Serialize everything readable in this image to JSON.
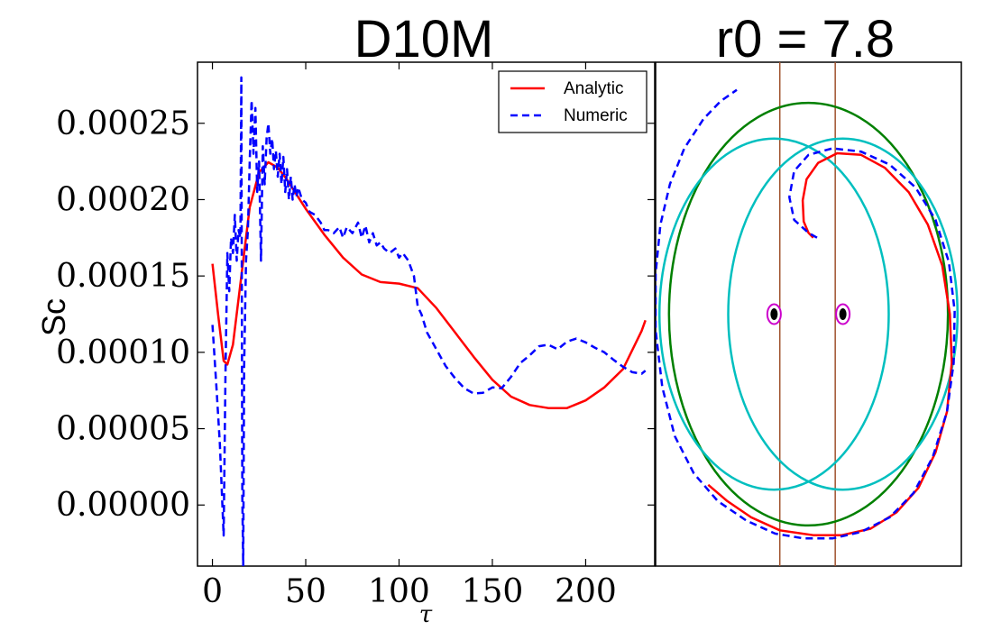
{
  "chart_data": [
    {
      "type": "line",
      "title": "D10M",
      "xlabel": "τ",
      "ylabel": "Sc",
      "xlim": [
        -8,
        237
      ],
      "ylim": [
        -4e-05,
        0.00029
      ],
      "grid": false,
      "legend_position": "top-right",
      "x_ticks": [
        0,
        50,
        100,
        150,
        200
      ],
      "x_tick_labels": [
        "0",
        "50",
        "100",
        "150",
        "200"
      ],
      "y_ticks": [
        0,
        5e-05,
        0.0001,
        0.00015,
        0.0002,
        0.00025
      ],
      "y_tick_labels": [
        "0.00000",
        "0.00005",
        "0.00010",
        "0.00015",
        "0.00020",
        "0.00025"
      ],
      "series": [
        {
          "name": "Analytic",
          "color": "#ff0000",
          "style": "solid",
          "x": [
            0,
            3,
            6,
            8,
            11,
            15,
            20,
            25,
            30,
            35,
            40,
            50,
            60,
            70,
            80,
            90,
            100,
            110,
            120,
            130,
            140,
            150,
            160,
            170,
            180,
            190,
            200,
            210,
            220,
            230,
            232
          ],
          "y": [
            0.000158,
            0.000125,
            9.45e-05,
            9.2e-05,
            0.000105,
            0.000145,
            0.000195,
            0.000218,
            0.0002245,
            0.000221,
            0.000213,
            0.000194,
            0.000177,
            0.000162,
            0.000151,
            0.000146,
            0.000145,
            0.000142,
            0.000129,
            0.000113,
            9.7e-05,
            8.2e-05,
            7.1e-05,
            6.55e-05,
            6.35e-05,
            6.35e-05,
            6.85e-05,
            7.7e-05,
            8.9e-05,
            0.000114,
            0.000121
          ]
        },
        {
          "name": "Numeric",
          "color": "#0000ff",
          "style": "dashed",
          "x": [
            0,
            2,
            4,
            6,
            7,
            8,
            9,
            10,
            11,
            12,
            13,
            14,
            15,
            15.5,
            16,
            16.5,
            17,
            18,
            19,
            20,
            21,
            22,
            23,
            24,
            25,
            26,
            27,
            28,
            29,
            30,
            31,
            32,
            33,
            34,
            35,
            36,
            37,
            38,
            39,
            40,
            41,
            42,
            43,
            44,
            45,
            46,
            48,
            50,
            52,
            55,
            58,
            60,
            62,
            65,
            68,
            70,
            72,
            75,
            78,
            80,
            82,
            84,
            86,
            88,
            90,
            92,
            95,
            98,
            100,
            102,
            105,
            108,
            110,
            112,
            115,
            120,
            125,
            130,
            135,
            140,
            145,
            150,
            155,
            160,
            165,
            170,
            175,
            180,
            185,
            190,
            195,
            200,
            205,
            210,
            215,
            220,
            225,
            230,
            232
          ],
          "y": [
            0.000118,
            8e-05,
            4e-05,
            -2e-05,
            8.5e-05,
            0.000165,
            0.00014,
            0.000175,
            0.000165,
            0.00019,
            0.00016,
            0.00018,
            0.000175,
            0.00028,
            5e-06,
            -4e-05,
            9e-05,
            0.00016,
            0.00018,
            0.000225,
            0.000265,
            0.00023,
            0.00026,
            0.000205,
            0.000225,
            0.00016,
            0.000235,
            0.00021,
            0.00024,
            0.00025,
            0.00023,
            0.00024,
            0.00022,
            0.000232,
            0.000215,
            0.00023,
            0.00021,
            0.000228,
            0.000205,
            0.00022,
            0.0002,
            0.000215,
            0.0002,
            0.00021,
            0.000202,
            0.000208,
            0.0002,
            0.000198,
            0.000192,
            0.00019,
            0.000185,
            0.00018,
            0.00018,
            0.000178,
            0.000182,
            0.000175,
            0.000182,
            0.000178,
            0.000185,
            0.000175,
            0.000183,
            0.000172,
            0.000178,
            0.00017,
            0.000172,
            0.000168,
            0.000165,
            0.000168,
            0.000162,
            0.000165,
            0.00016,
            0.00015,
            0.00013,
            0.000125,
            0.000113,
            0.000102,
            9.1e-05,
            8.3e-05,
            7.65e-05,
            7.3e-05,
            7.35e-05,
            7.7e-05,
            7.65e-05,
            8.4e-05,
            9.3e-05,
            9.8e-05,
            0.000104,
            0.000105,
            0.000102,
            0.000107,
            0.000109,
            0.0001065,
            0.000103,
            0.0001,
            9.5e-05,
            9.05e-05,
            8.7e-05,
            8.6e-05,
            8.8e-05
          ]
        }
      ]
    },
    {
      "type": "line",
      "title": "r0 = 7.8",
      "xlim": [
        -1.6,
        1.6
      ],
      "ylim": [
        -1.55,
        1.55
      ],
      "axes_visible": false,
      "grid": false,
      "bodies": [
        {
          "x": -0.36,
          "y": 0
        },
        {
          "x": 0.36,
          "y": 0
        }
      ],
      "body_colors": {
        "fill": "#000000",
        "ring": "#cc00cc"
      },
      "vertical_lines": {
        "x": [
          -0.3,
          0.28
        ],
        "color": "#a0522d"
      },
      "curves": [
        {
          "name": "green orbit",
          "color": "#008000",
          "style": "solid",
          "shape": "ellipse",
          "cx": 0,
          "cy": 0,
          "rx": 1.46,
          "ry": 1.3
        },
        {
          "name": "cyan orbit left",
          "color": "#00bfbf",
          "style": "solid",
          "shape": "ellipse",
          "cx": -0.36,
          "cy": 0,
          "rx": 1.2,
          "ry": 1.08
        },
        {
          "name": "cyan orbit right",
          "color": "#00bfbf",
          "style": "solid",
          "shape": "ellipse",
          "cx": 0.36,
          "cy": 0,
          "rx": 1.2,
          "ry": 1.08
        },
        {
          "name": "red spiral",
          "color": "#ff0000",
          "style": "solid",
          "shape": "polyline",
          "x": [
            0.05,
            0.0,
            -0.05,
            -0.06,
            -0.02,
            0.1,
            0.3,
            0.55,
            0.8,
            1.05,
            1.25,
            1.4,
            1.48,
            1.5,
            1.45,
            1.33,
            1.15,
            0.92,
            0.65,
            0.35,
            0.05,
            -0.3,
            -0.6,
            -0.85,
            -1.05
          ],
          "y": [
            0.47,
            0.5,
            0.57,
            0.7,
            0.83,
            0.93,
            0.99,
            0.98,
            0.9,
            0.75,
            0.55,
            0.3,
            0.0,
            -0.3,
            -0.6,
            -0.85,
            -1.07,
            -1.22,
            -1.32,
            -1.36,
            -1.36,
            -1.33,
            -1.25,
            -1.15,
            -1.05
          ]
        },
        {
          "name": "blue dashed spiral",
          "color": "#0000ff",
          "style": "dashed",
          "shape": "polyline",
          "x": [
            0.09,
            0.0,
            -0.15,
            -0.2,
            -0.15,
            0.0,
            0.25,
            0.55,
            0.85,
            1.12,
            1.33,
            1.47,
            1.53,
            1.52,
            1.45,
            1.3,
            1.1,
            0.85,
            0.55,
            0.25,
            -0.05,
            -0.35,
            -0.65,
            -0.95,
            -1.2,
            -1.4,
            -1.53,
            -1.6,
            -1.6,
            -1.55,
            -1.45,
            -1.3,
            -1.1,
            -0.92,
            -0.75
          ],
          "y": [
            0.47,
            0.5,
            0.58,
            0.72,
            0.88,
            0.98,
            1.02,
            1.0,
            0.92,
            0.78,
            0.58,
            0.32,
            0.02,
            -0.3,
            -0.6,
            -0.88,
            -1.1,
            -1.25,
            -1.34,
            -1.38,
            -1.38,
            -1.35,
            -1.27,
            -1.15,
            -0.98,
            -0.75,
            -0.45,
            -0.1,
            0.25,
            0.55,
            0.8,
            1.02,
            1.2,
            1.31,
            1.38
          ]
        }
      ]
    }
  ]
}
